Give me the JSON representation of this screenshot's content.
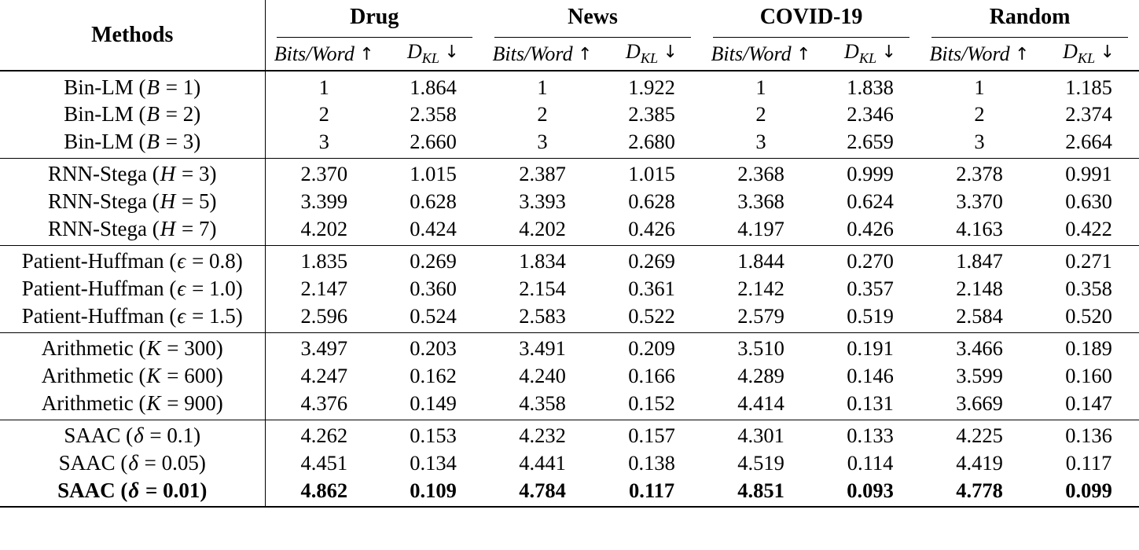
{
  "table": {
    "methods_header": "Methods",
    "metric_bits": {
      "label": "Bits/Word",
      "arrow": "↑"
    },
    "metric_dkl": {
      "main": "D",
      "sub": "KL",
      "arrow": "↓"
    },
    "datasets": [
      "Drug",
      "News",
      "COVID-19",
      "Random"
    ],
    "groups": [
      {
        "name": "Bin-LM",
        "rows": [
          {
            "method": {
              "pre": "Bin-LM (",
              "var": "B",
              "post": " = 1)"
            },
            "bold": false,
            "values": [
              "1",
              "1.864",
              "1",
              "1.922",
              "1",
              "1.838",
              "1",
              "1.185"
            ]
          },
          {
            "method": {
              "pre": "Bin-LM (",
              "var": "B",
              "post": " = 2)"
            },
            "bold": false,
            "values": [
              "2",
              "2.358",
              "2",
              "2.385",
              "2",
              "2.346",
              "2",
              "2.374"
            ]
          },
          {
            "method": {
              "pre": "Bin-LM (",
              "var": "B",
              "post": " = 3)"
            },
            "bold": false,
            "values": [
              "3",
              "2.660",
              "3",
              "2.680",
              "3",
              "2.659",
              "3",
              "2.664"
            ]
          }
        ]
      },
      {
        "name": "RNN-Stega",
        "rows": [
          {
            "method": {
              "pre": "RNN-Stega (",
              "var": "H",
              "post": " = 3)"
            },
            "bold": false,
            "values": [
              "2.370",
              "1.015",
              "2.387",
              "1.015",
              "2.368",
              "0.999",
              "2.378",
              "0.991"
            ]
          },
          {
            "method": {
              "pre": "RNN-Stega (",
              "var": "H",
              "post": " = 5)"
            },
            "bold": false,
            "values": [
              "3.399",
              "0.628",
              "3.393",
              "0.628",
              "3.368",
              "0.624",
              "3.370",
              "0.630"
            ]
          },
          {
            "method": {
              "pre": "RNN-Stega (",
              "var": "H",
              "post": " = 7)"
            },
            "bold": false,
            "values": [
              "4.202",
              "0.424",
              "4.202",
              "0.426",
              "4.197",
              "0.426",
              "4.163",
              "0.422"
            ]
          }
        ]
      },
      {
        "name": "Patient-Huffman",
        "rows": [
          {
            "method": {
              "pre": "Patient-Huffman (",
              "var": "ϵ",
              "post": " = 0.8)"
            },
            "bold": false,
            "values": [
              "1.835",
              "0.269",
              "1.834",
              "0.269",
              "1.844",
              "0.270",
              "1.847",
              "0.271"
            ]
          },
          {
            "method": {
              "pre": "Patient-Huffman (",
              "var": "ϵ",
              "post": " = 1.0)"
            },
            "bold": false,
            "values": [
              "2.147",
              "0.360",
              "2.154",
              "0.361",
              "2.142",
              "0.357",
              "2.148",
              "0.358"
            ]
          },
          {
            "method": {
              "pre": "Patient-Huffman (",
              "var": "ϵ",
              "post": " = 1.5)"
            },
            "bold": false,
            "values": [
              "2.596",
              "0.524",
              "2.583",
              "0.522",
              "2.579",
              "0.519",
              "2.584",
              "0.520"
            ]
          }
        ]
      },
      {
        "name": "Arithmetic",
        "rows": [
          {
            "method": {
              "pre": "Arithmetic (",
              "var": "K",
              "post": " = 300)"
            },
            "bold": false,
            "values": [
              "3.497",
              "0.203",
              "3.491",
              "0.209",
              "3.510",
              "0.191",
              "3.466",
              "0.189"
            ]
          },
          {
            "method": {
              "pre": "Arithmetic (",
              "var": "K",
              "post": " = 600)"
            },
            "bold": false,
            "values": [
              "4.247",
              "0.162",
              "4.240",
              "0.166",
              "4.289",
              "0.146",
              "3.599",
              "0.160"
            ]
          },
          {
            "method": {
              "pre": "Arithmetic (",
              "var": "K",
              "post": " = 900)"
            },
            "bold": false,
            "values": [
              "4.376",
              "0.149",
              "4.358",
              "0.152",
              "4.414",
              "0.131",
              "3.669",
              "0.147"
            ]
          }
        ]
      },
      {
        "name": "SAAC",
        "rows": [
          {
            "method": {
              "pre": "SAAC (",
              "var": "δ",
              "post": " = 0.1)"
            },
            "bold": false,
            "values": [
              "4.262",
              "0.153",
              "4.232",
              "0.157",
              "4.301",
              "0.133",
              "4.225",
              "0.136"
            ]
          },
          {
            "method": {
              "pre": "SAAC (",
              "var": "δ",
              "post": " = 0.05)"
            },
            "bold": false,
            "values": [
              "4.451",
              "0.134",
              "4.441",
              "0.138",
              "4.519",
              "0.114",
              "4.419",
              "0.117"
            ]
          },
          {
            "method": {
              "pre": "SAAC (",
              "var": "δ",
              "post": " = 0.01)"
            },
            "bold": true,
            "values": [
              "4.862",
              "0.109",
              "4.784",
              "0.117",
              "4.851",
              "0.093",
              "4.778",
              "0.099"
            ]
          }
        ]
      }
    ],
    "layout": {
      "methods_col_width": 337,
      "bits_col_width": 150,
      "dkl_col_width": 128,
      "rule_color": "#000000",
      "text_color": "#000000",
      "background": "#ffffff"
    }
  }
}
